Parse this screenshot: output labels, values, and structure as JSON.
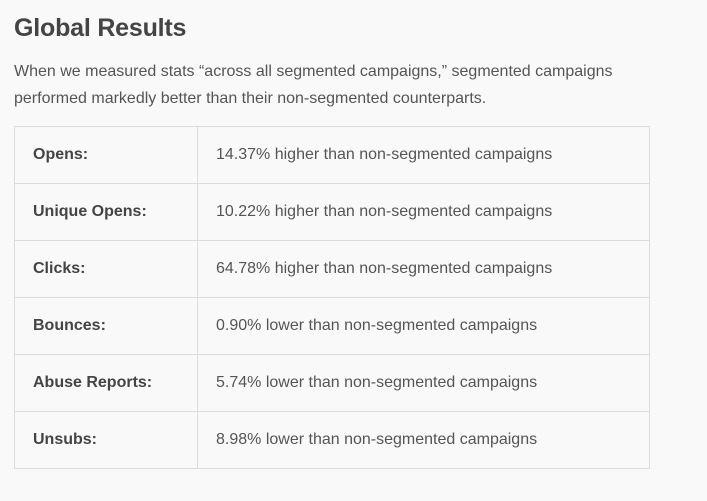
{
  "heading": "Global Results",
  "intro": "When we measured stats “across all segmented campaigns,” segmented campaigns performed markedly better than their non-segmented counterparts.",
  "rows": [
    {
      "metric": "Opens:",
      "value": "14.37% higher than non-segmented campaigns"
    },
    {
      "metric": "Unique Opens:",
      "value": "10.22% higher than non-segmented campaigns"
    },
    {
      "metric": "Clicks:",
      "value": "64.78% higher than non-segmented campaigns"
    },
    {
      "metric": "Bounces:",
      "value": "0.90% lower than non-segmented campaigns"
    },
    {
      "metric": "Abuse Reports:",
      "value": "5.74% lower than non-segmented campaigns"
    },
    {
      "metric": "Unsubs:",
      "value": "8.98% lower than non-segmented campaigns"
    }
  ]
}
